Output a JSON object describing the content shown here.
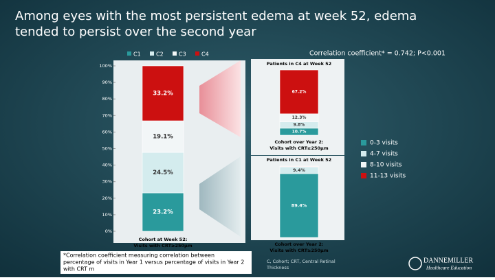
{
  "title": [
    "Among eyes with the most persistent edema at week 52, edema",
    "tended to persist over the second year"
  ],
  "correlation": "Correlation coefficient* = 0.742; P<0.001",
  "footnote": [
    "*Correlation coefficient measuring correlation between",
    "percentage of visits in Year 1 versus percentage of visits in Year 2",
    "with CRT m"
  ],
  "abbreviations": [
    "C, Cohort; CRT, Central Retinal",
    "Thickness"
  ],
  "logo": {
    "name": "DANNEMILLER",
    "tagline": "Healthcare Education"
  },
  "chart_data": [
    {
      "type": "stacked-bar",
      "categories": [
        [
          "Cohort at Week 52:",
          "Visits with CRT≥250μm"
        ]
      ],
      "ylim": [
        0,
        100
      ],
      "yticks": [
        {
          "value": 0,
          "label": "0%"
        },
        {
          "value": 10,
          "label": "10%"
        },
        {
          "value": 20,
          "label": "20%"
        },
        {
          "value": 30,
          "label": "30%"
        },
        {
          "value": 40,
          "label": "40%"
        },
        {
          "value": 50,
          "label": "50%"
        },
        {
          "value": 60,
          "label": "60%"
        },
        {
          "value": 70,
          "label": "70%"
        },
        {
          "value": 80,
          "label": "80%"
        },
        {
          "value": 90,
          "label": "90%"
        },
        {
          "value": 100,
          "label": "100%"
        }
      ],
      "legend": "top",
      "series": [
        {
          "name": "C1",
          "color": "#2a9a9c",
          "values": [
            23.2
          ],
          "value_labels": [
            "23.2%"
          ]
        },
        {
          "name": "C2",
          "color": "#d4ecee",
          "values": [
            24.5
          ],
          "value_labels": [
            "24.5%"
          ]
        },
        {
          "name": "C3",
          "color": "#f2f6f7",
          "values": [
            19.1
          ],
          "value_labels": [
            "19.1%"
          ]
        },
        {
          "name": "C4",
          "color": "#cc1010",
          "values": [
            33.2
          ],
          "value_labels": [
            "33.2%"
          ]
        }
      ]
    },
    {
      "type": "stacked-bar",
      "title": "Patients in C4 at Week 52",
      "categories": [
        [
          "Cohort over Year 2:",
          "Visits with CRT≥250μm"
        ]
      ],
      "legend": "right",
      "series": [
        {
          "name": "0-3 visits",
          "color": "#2a9a9c",
          "values": [
            10.7
          ],
          "value_labels": [
            "10.7%"
          ]
        },
        {
          "name": "4-7 visits",
          "color": "#d4ecee",
          "values": [
            9.8
          ],
          "value_labels": [
            "9.8%"
          ]
        },
        {
          "name": "8-10 visits",
          "color": "#f2f6f7",
          "values": [
            12.3
          ],
          "value_labels": [
            "12.3%"
          ]
        },
        {
          "name": "11-13 visits",
          "color": "#cc1010",
          "values": [
            67.2
          ],
          "value_labels": [
            "67.2%"
          ]
        }
      ]
    },
    {
      "type": "stacked-bar",
      "title": "Patients in C1 at Week 52",
      "categories": [
        [
          "Cohort over Year 2:",
          "Visits with CRT≥250μm"
        ]
      ],
      "series": [
        {
          "color": "#2a9a9c",
          "values": [
            89.4
          ],
          "value_labels": [
            "89.4%"
          ]
        },
        {
          "color": "#d4ecee",
          "values": [
            9.4
          ],
          "value_labels": [
            "9.4%"
          ]
        },
        {
          "color": "#f2f6f7",
          "values": [
            0.6
          ],
          "value_labels": [
            null
          ]
        },
        {
          "color": "#cc1010",
          "values": [
            0.6
          ],
          "value_labels": [
            null
          ]
        }
      ]
    }
  ]
}
